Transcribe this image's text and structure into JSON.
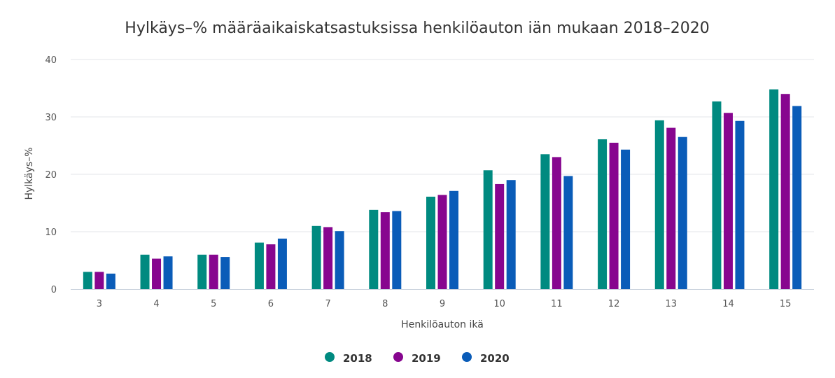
{
  "chart_data": {
    "type": "bar",
    "title": "Hylkäys–% määräaikaiskatsastuksissa henkilöauton iän mukaan 2018–2020",
    "xlabel": "Henkilöauton ikä",
    "ylabel": "Hylkäys–%",
    "ylim": [
      0,
      40
    ],
    "yticks": [
      "0",
      "10",
      "20",
      "30",
      "40"
    ],
    "categories": [
      "3",
      "4",
      "5",
      "6",
      "7",
      "8",
      "9",
      "10",
      "11",
      "12",
      "13",
      "14",
      "15"
    ],
    "series": [
      {
        "name": "2018",
        "color": "#008a80",
        "values": [
          3.0,
          6.0,
          6.0,
          8.1,
          11.0,
          13.8,
          16.1,
          20.7,
          23.5,
          26.1,
          29.4,
          32.7,
          34.8
        ]
      },
      {
        "name": "2019",
        "color": "#87068f",
        "values": [
          3.0,
          5.3,
          6.0,
          7.8,
          10.8,
          13.4,
          16.4,
          18.3,
          23.0,
          25.5,
          28.1,
          30.7,
          34.0
        ]
      },
      {
        "name": "2020",
        "color": "#0a5cb8",
        "values": [
          2.7,
          5.7,
          5.6,
          8.8,
          10.1,
          13.6,
          17.1,
          19.0,
          19.7,
          24.3,
          26.5,
          29.3,
          31.9
        ]
      }
    ],
    "grid": true,
    "legend": "bottom-center"
  }
}
